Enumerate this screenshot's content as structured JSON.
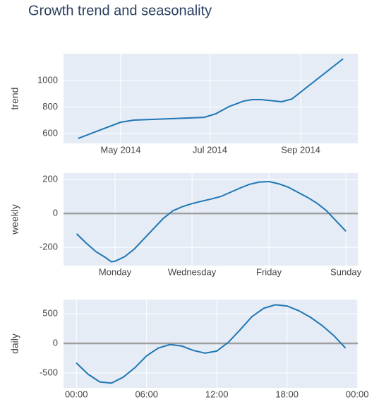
{
  "chart_data": [
    {
      "type": "line",
      "title": "Growth trend and seasonality",
      "y_label": "trend",
      "color": "#1f77b4",
      "grid": true,
      "zeroline": false,
      "x": [
        "2014-04-02",
        "2014-05-01",
        "2014-05-10",
        "2014-06-27",
        "2014-07-05",
        "2014-07-14",
        "2014-07-24",
        "2014-07-30",
        "2014-08-05",
        "2014-08-19",
        "2014-08-26",
        "2014-09-30"
      ],
      "values": [
        563,
        685,
        701,
        722,
        749,
        803,
        845,
        856,
        856,
        840,
        861,
        1165
      ],
      "xlim": [
        "2014-03-23",
        "2014-10-10"
      ],
      "xticks": [
        {
          "value": "2014-05-01",
          "label": "May 2014"
        },
        {
          "value": "2014-07-01",
          "label": "Jul 2014"
        },
        {
          "value": "2014-09-01",
          "label": "Sep 2014"
        }
      ],
      "ylim": [
        525,
        1203
      ],
      "yticks": [
        600,
        800,
        1000
      ]
    },
    {
      "type": "line",
      "y_label": "weekly",
      "color": "#1f77b4",
      "grid": true,
      "zeroline": true,
      "x": [
        0,
        0.25,
        0.5,
        0.75,
        0.9,
        1,
        1.25,
        1.5,
        1.75,
        2,
        2.25,
        2.5,
        2.75,
        3,
        3.25,
        3.5,
        3.75,
        4,
        4.25,
        4.5,
        4.75,
        5,
        5.25,
        5.5,
        5.75,
        6,
        6.25,
        6.5,
        6.75,
        7
      ],
      "values": [
        -120,
        -175,
        -225,
        -260,
        -285,
        -282,
        -255,
        -210,
        -150,
        -90,
        -30,
        15,
        40,
        58,
        72,
        85,
        100,
        125,
        150,
        172,
        185,
        188,
        175,
        155,
        125,
        95,
        60,
        15,
        -45,
        -105
      ],
      "xlim": [
        -0.34,
        7.31
      ],
      "xticks": [
        {
          "value": 1,
          "label": "Monday"
        },
        {
          "value": 3,
          "label": "Wednesday"
        },
        {
          "value": 5,
          "label": "Friday"
        },
        {
          "value": 7,
          "label": "Sunday"
        }
      ],
      "ylim": [
        -308,
        238
      ],
      "yticks": [
        -200,
        0,
        200
      ]
    },
    {
      "type": "line",
      "y_label": "daily",
      "color": "#1f77b4",
      "grid": true,
      "zeroline": true,
      "x": [
        0,
        1,
        2,
        3,
        4,
        5,
        6,
        7,
        8,
        9,
        10,
        11,
        12,
        13,
        14,
        15,
        16,
        17,
        18,
        19,
        20,
        21,
        22,
        23
      ],
      "values": [
        -330,
        -520,
        -650,
        -670,
        -570,
        -410,
        -210,
        -80,
        -20,
        -45,
        -120,
        -165,
        -130,
        20,
        230,
        450,
        590,
        650,
        630,
        550,
        440,
        300,
        130,
        -80
      ],
      "xlim": [
        -1.1,
        24.05
      ],
      "xticks": [
        {
          "value": 0,
          "label": "00:00"
        },
        {
          "value": 6,
          "label": "06:00"
        },
        {
          "value": 12,
          "label": "12:00"
        },
        {
          "value": 18,
          "label": "18:00"
        },
        {
          "value": 24,
          "label": "00:00"
        }
      ],
      "ylim": [
        -750,
        738
      ],
      "yticks": [
        -500,
        0,
        500
      ]
    }
  ]
}
